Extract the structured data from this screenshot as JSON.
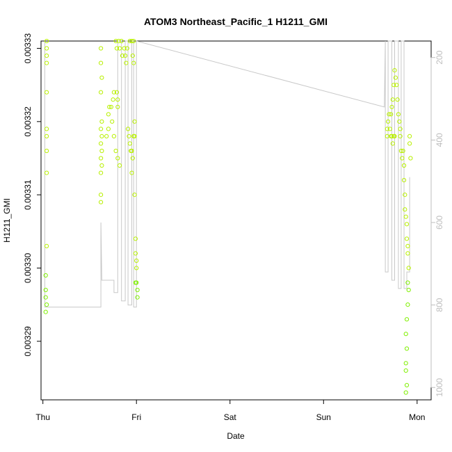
{
  "chart_data": {
    "type": "scatter",
    "title": "ATOM3 Northeast_Pacific_1 H1211_GMI",
    "xlabel": "Date",
    "ylabel": "H1211_GMI",
    "x_ticks": [
      "Thu",
      "Fri",
      "Sat",
      "Sun",
      "Mon"
    ],
    "y_ticks": [
      "0.00329",
      "0.00330",
      "0.00331",
      "0.00332",
      "0.00333"
    ],
    "y_range": [
      0.003282,
      0.003331
    ],
    "y2_ticks": [
      "200",
      "400",
      "600",
      "800",
      "1000"
    ],
    "y2_range": [
      160,
      1030
    ],
    "x_range_days": [
      -0.02,
      4.15
    ],
    "grid": false,
    "point_color_top": "#b8f000",
    "point_color_bottom": "#7ff000",
    "line_color": "#c8c8c8",
    "series": [
      {
        "values": [
          [
            0.04,
            0.003331
          ],
          [
            0.04,
            0.00333
          ],
          [
            0.04,
            0.003329
          ],
          [
            0.04,
            0.003328
          ],
          [
            0.04,
            0.003324
          ],
          [
            0.04,
            0.003319
          ],
          [
            0.04,
            0.003318
          ],
          [
            0.04,
            0.003316
          ],
          [
            0.04,
            0.003313
          ],
          [
            0.04,
            0.003303
          ],
          [
            0.03,
            0.003299
          ],
          [
            0.03,
            0.003297
          ],
          [
            0.03,
            0.003296
          ],
          [
            0.04,
            0.003295
          ],
          [
            0.03,
            0.003294
          ],
          [
            0.62,
            0.00333
          ],
          [
            0.62,
            0.003328
          ],
          [
            0.63,
            0.003326
          ],
          [
            0.62,
            0.003324
          ],
          [
            0.63,
            0.00332
          ],
          [
            0.62,
            0.003319
          ],
          [
            0.63,
            0.003318
          ],
          [
            0.62,
            0.003317
          ],
          [
            0.63,
            0.003316
          ],
          [
            0.62,
            0.003315
          ],
          [
            0.63,
            0.003314
          ],
          [
            0.62,
            0.003313
          ],
          [
            0.62,
            0.00331
          ],
          [
            0.62,
            0.003309
          ],
          [
            0.68,
            0.003318
          ],
          [
            0.7,
            0.003319
          ],
          [
            0.7,
            0.003321
          ],
          [
            0.71,
            0.003322
          ],
          [
            0.73,
            0.003322
          ],
          [
            0.75,
            0.003323
          ],
          [
            0.76,
            0.003324
          ],
          [
            0.79,
            0.003324
          ],
          [
            0.8,
            0.003323
          ],
          [
            0.8,
            0.003322
          ],
          [
            0.74,
            0.00332
          ],
          [
            0.76,
            0.003318
          ],
          [
            0.78,
            0.003316
          ],
          [
            0.8,
            0.003315
          ],
          [
            0.82,
            0.003314
          ],
          [
            0.78,
            0.003331
          ],
          [
            0.79,
            0.00333
          ],
          [
            0.81,
            0.003331
          ],
          [
            0.82,
            0.00333
          ],
          [
            0.84,
            0.003331
          ],
          [
            0.85,
            0.003329
          ],
          [
            0.87,
            0.00333
          ],
          [
            0.88,
            0.003329
          ],
          [
            0.89,
            0.003328
          ],
          [
            0.9,
            0.00333
          ],
          [
            0.91,
            0.003319
          ],
          [
            0.92,
            0.003318
          ],
          [
            0.93,
            0.003317
          ],
          [
            0.94,
            0.003316
          ],
          [
            0.95,
            0.003316
          ],
          [
            0.96,
            0.003315
          ],
          [
            0.95,
            0.003313
          ],
          [
            0.97,
            0.003318
          ],
          [
            0.93,
            0.003331
          ],
          [
            0.95,
            0.003331
          ],
          [
            0.96,
            0.003329
          ],
          [
            0.97,
            0.003331
          ],
          [
            0.97,
            0.003328
          ],
          [
            0.98,
            0.00332
          ],
          [
            0.98,
            0.003318
          ],
          [
            0.98,
            0.00331
          ],
          [
            0.99,
            0.003304
          ],
          [
            0.99,
            0.003302
          ],
          [
            1.0,
            0.003301
          ],
          [
            1.0,
            0.0033
          ],
          [
            0.99,
            0.003298
          ],
          [
            1.0,
            0.003298
          ],
          [
            1.01,
            0.003297
          ],
          [
            1.01,
            0.003296
          ],
          [
            3.68,
            0.003318
          ],
          [
            3.68,
            0.003319
          ],
          [
            3.69,
            0.00332
          ],
          [
            3.7,
            0.003321
          ],
          [
            3.71,
            0.003319
          ],
          [
            3.72,
            0.003318
          ],
          [
            3.73,
            0.003318
          ],
          [
            3.74,
            0.003317
          ],
          [
            3.75,
            0.003318
          ],
          [
            3.76,
            0.003318
          ],
          [
            3.72,
            0.003321
          ],
          [
            3.73,
            0.003322
          ],
          [
            3.74,
            0.003323
          ],
          [
            3.75,
            0.003325
          ],
          [
            3.76,
            0.003327
          ],
          [
            3.77,
            0.003326
          ],
          [
            3.78,
            0.003325
          ],
          [
            3.79,
            0.003323
          ],
          [
            3.8,
            0.003321
          ],
          [
            3.81,
            0.00332
          ],
          [
            3.82,
            0.003319
          ],
          [
            3.82,
            0.003318
          ],
          [
            3.83,
            0.003316
          ],
          [
            3.84,
            0.003315
          ],
          [
            3.85,
            0.003316
          ],
          [
            3.86,
            0.003314
          ],
          [
            3.86,
            0.003312
          ],
          [
            3.87,
            0.00331
          ],
          [
            3.87,
            0.003308
          ],
          [
            3.88,
            0.003307
          ],
          [
            3.89,
            0.003306
          ],
          [
            3.89,
            0.003304
          ],
          [
            3.9,
            0.003303
          ],
          [
            3.9,
            0.003302
          ],
          [
            3.91,
            0.0033
          ],
          [
            3.9,
            0.003298
          ],
          [
            3.91,
            0.003297
          ],
          [
            3.9,
            0.003295
          ],
          [
            3.89,
            0.003293
          ],
          [
            3.88,
            0.003291
          ],
          [
            3.89,
            0.003289
          ],
          [
            3.88,
            0.003287
          ],
          [
            3.88,
            0.003286
          ],
          [
            3.89,
            0.003284
          ],
          [
            3.88,
            0.003283
          ],
          [
            3.92,
            0.003318
          ],
          [
            3.92,
            0.003317
          ],
          [
            3.93,
            0.003315
          ]
        ]
      }
    ]
  }
}
